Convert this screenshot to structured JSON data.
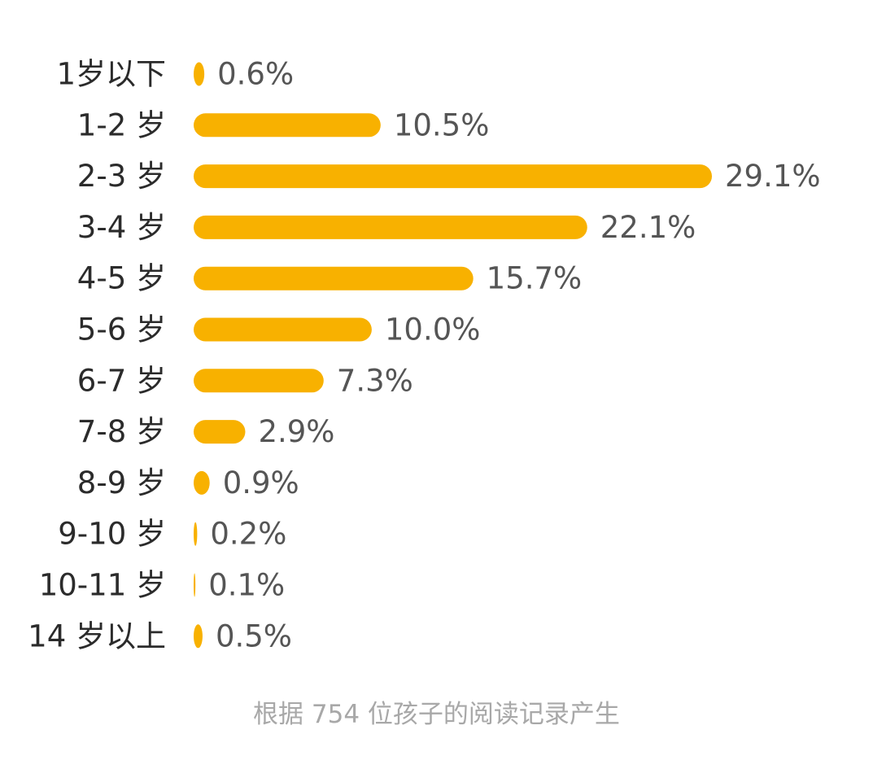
{
  "chart_data": {
    "type": "bar",
    "orientation": "horizontal",
    "categories": [
      "1岁以下",
      "1-2 岁",
      "2-3 岁",
      "3-4 岁",
      "4-5 岁",
      "5-6 岁",
      "6-7 岁",
      "7-8 岁",
      "8-9 岁",
      "9-10 岁",
      "10-11 岁",
      "14 岁以上"
    ],
    "values": [
      0.6,
      10.5,
      29.1,
      22.1,
      15.7,
      10.0,
      7.3,
      2.9,
      0.9,
      0.2,
      0.1,
      0.5
    ],
    "value_labels": [
      "0.6%",
      "10.5%",
      "29.1%",
      "22.1%",
      "15.7%",
      "10.0%",
      "7.3%",
      "2.9%",
      "0.9%",
      "0.2%",
      "0.1%",
      "0.5%"
    ],
    "unit": "%",
    "bar_color": "#F8B100",
    "grid": false,
    "legend": false
  },
  "footnote": "根据 754 位孩子的阅读记录产生"
}
